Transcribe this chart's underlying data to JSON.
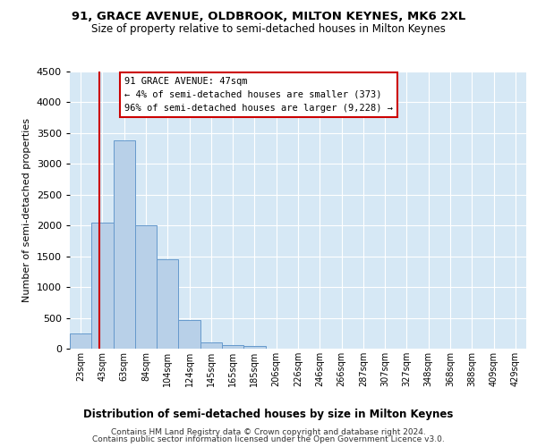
{
  "title": "91, GRACE AVENUE, OLDBROOK, MILTON KEYNES, MK6 2XL",
  "subtitle": "Size of property relative to semi-detached houses in Milton Keynes",
  "xlabel": "Distribution of semi-detached houses by size in Milton Keynes",
  "ylabel": "Number of semi-detached properties",
  "footer_line1": "Contains HM Land Registry data © Crown copyright and database right 2024.",
  "footer_line2": "Contains public sector information licensed under the Open Government Licence v3.0.",
  "annotation_title": "91 GRACE AVENUE: 47sqm",
  "annotation_line1": "← 4% of semi-detached houses are smaller (373)",
  "annotation_line2": "96% of semi-detached houses are larger (9,228) →",
  "bar_color": "#b8d0e8",
  "bar_edge_color": "#6699cc",
  "vline_color": "#cc0000",
  "background_color": "#d6e8f5",
  "fig_background": "#ffffff",
  "annotation_box_color": "#ffffff",
  "annotation_border_color": "#cc0000",
  "categories": [
    "23sqm",
    "43sqm",
    "63sqm",
    "84sqm",
    "104sqm",
    "124sqm",
    "145sqm",
    "165sqm",
    "185sqm",
    "206sqm",
    "226sqm",
    "246sqm",
    "266sqm",
    "287sqm",
    "307sqm",
    "327sqm",
    "348sqm",
    "368sqm",
    "388sqm",
    "409sqm",
    "429sqm"
  ],
  "values": [
    250,
    2050,
    3380,
    2000,
    1450,
    470,
    100,
    60,
    50,
    0,
    0,
    0,
    0,
    0,
    0,
    0,
    0,
    0,
    0,
    0,
    0
  ],
  "ylim": [
    0,
    4500
  ],
  "yticks": [
    0,
    500,
    1000,
    1500,
    2000,
    2500,
    3000,
    3500,
    4000,
    4500
  ],
  "vline_x": 0.85,
  "figsize": [
    6.0,
    5.0
  ],
  "dpi": 100
}
